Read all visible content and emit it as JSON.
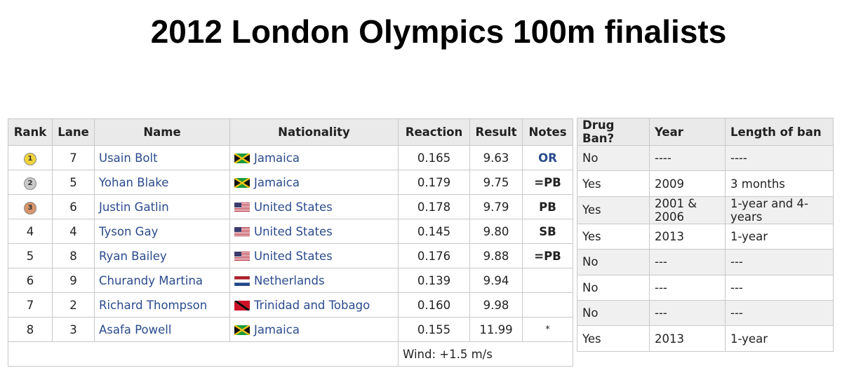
{
  "title": "2012 London Olympics 100m finalists",
  "results": {
    "headers": [
      "Rank",
      "Lane",
      "Name",
      "Nationality",
      "Reaction",
      "Result",
      "Notes"
    ],
    "rows": [
      {
        "rank": "1",
        "medal": "gold",
        "lane": "7",
        "name": "Usain Bolt",
        "nationality": "Jamaica",
        "flag": "jamaica-flag",
        "reaction": "0.165",
        "result": "9.63",
        "notes": "OR"
      },
      {
        "rank": "2",
        "medal": "silver",
        "lane": "5",
        "name": "Yohan Blake",
        "nationality": "Jamaica",
        "flag": "jamaica-flag",
        "reaction": "0.179",
        "result": "9.75",
        "notes": "=PB"
      },
      {
        "rank": "3",
        "medal": "bronze",
        "lane": "6",
        "name": "Justin Gatlin",
        "nationality": "United States",
        "flag": "usa-flag",
        "reaction": "0.178",
        "result": "9.79",
        "notes": "PB"
      },
      {
        "rank": "4",
        "medal": "",
        "lane": "4",
        "name": "Tyson Gay",
        "nationality": "United States",
        "flag": "usa-flag",
        "reaction": "0.145",
        "result": "9.80",
        "notes": "SB"
      },
      {
        "rank": "5",
        "medal": "",
        "lane": "8",
        "name": "Ryan Bailey",
        "nationality": "United States",
        "flag": "usa-flag",
        "reaction": "0.176",
        "result": "9.88",
        "notes": "=PB"
      },
      {
        "rank": "6",
        "medal": "",
        "lane": "9",
        "name": "Churandy Martina",
        "nationality": "Netherlands",
        "flag": "netherlands-flag",
        "reaction": "0.139",
        "result": "9.94",
        "notes": ""
      },
      {
        "rank": "7",
        "medal": "",
        "lane": "2",
        "name": "Richard Thompson",
        "nationality": "Trinidad and Tobago",
        "flag": "trinidad-flag",
        "reaction": "0.160",
        "result": "9.98",
        "notes": ""
      },
      {
        "rank": "8",
        "medal": "",
        "lane": "3",
        "name": "Asafa Powell",
        "nationality": "Jamaica",
        "flag": "jamaica-flag",
        "reaction": "0.155",
        "result": "11.99",
        "notes": "*"
      }
    ],
    "wind": "Wind: +1.5 m/s"
  },
  "drugs": {
    "headers": [
      "Drug Ban?",
      "Year",
      "Length of ban"
    ],
    "rows": [
      {
        "ban": "No",
        "year": "----",
        "length": "----"
      },
      {
        "ban": "Yes",
        "year": "2009",
        "length": "3 months"
      },
      {
        "ban": "Yes",
        "year": "2001 & 2006",
        "length": "1-year and 4-years"
      },
      {
        "ban": "Yes",
        "year": "2013",
        "length": "1-year"
      },
      {
        "ban": "No",
        "year": "---",
        "length": "---"
      },
      {
        "ban": "No",
        "year": "---",
        "length": "---"
      },
      {
        "ban": "No",
        "year": "---",
        "length": "---"
      },
      {
        "ban": "Yes",
        "year": "2013",
        "length": "1-year"
      }
    ]
  },
  "colors": {
    "gold": "#f0d43a",
    "silver": "#c9c9c9",
    "bronze": "#d8956a",
    "link": "#2a4b8d"
  }
}
